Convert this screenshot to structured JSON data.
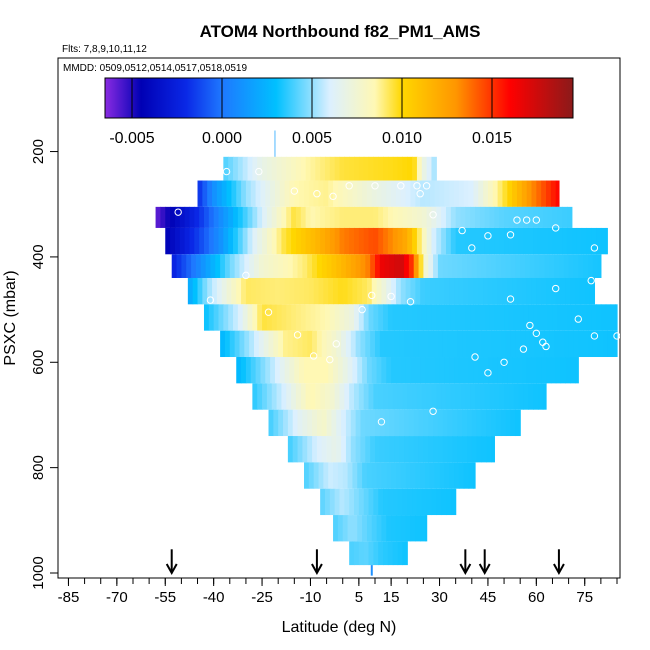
{
  "chart_data": {
    "type": "heatmap",
    "title": "ATOM4 Northbound f82_PM1_AMS",
    "flights_note": "Flts: 7,8,9,10,11,12",
    "dates_note": "MMDD: 0509,0512,0514,0517,0518,0519",
    "xlabel": "Latitude (deg N)",
    "ylabel": "PSXC (mbar)",
    "xlim": [
      -87,
      85
    ],
    "ylim": [
      1000,
      30
    ],
    "x_ticks": [
      -85,
      -70,
      -55,
      -40,
      -25,
      -10,
      5,
      15,
      30,
      45,
      60,
      75
    ],
    "y_ticks": [
      200,
      400,
      600,
      800,
      1000
    ],
    "colorbar": {
      "min": -0.0065,
      "max": 0.0195,
      "ticks": [
        -0.005,
        0.0,
        0.005,
        0.01,
        0.015
      ],
      "tick_labels": [
        "-0.005",
        "0.000",
        "0.005",
        "0.010",
        "0.015"
      ],
      "stops": [
        {
          "v": -0.0065,
          "c": "#8a2be2"
        },
        {
          "v": -0.0045,
          "c": "#0000b4"
        },
        {
          "v": -0.002,
          "c": "#0a28e6"
        },
        {
          "v": 0.0,
          "c": "#1e78ff"
        },
        {
          "v": 0.003,
          "c": "#00c0ff"
        },
        {
          "v": 0.006,
          "c": "#dcf0ff"
        },
        {
          "v": 0.0085,
          "c": "#fff8b4"
        },
        {
          "v": 0.01,
          "c": "#ffd700"
        },
        {
          "v": 0.013,
          "c": "#ff9600"
        },
        {
          "v": 0.016,
          "c": "#ff0000"
        },
        {
          "v": 0.0195,
          "c": "#8b1a1a"
        }
      ]
    },
    "layers": [
      {
        "p0": 210,
        "p1": 255,
        "lat0": -37,
        "lat1": 29,
        "pts": [
          [
            -37,
            0.004
          ],
          [
            -25,
            0.0068
          ],
          [
            -12,
            0.0085
          ],
          [
            0,
            0.0095
          ],
          [
            15,
            0.0098
          ],
          [
            22,
            0.01
          ],
          [
            25,
            0.007
          ],
          [
            29,
            0.005
          ]
        ]
      },
      {
        "p0": 255,
        "p1": 305,
        "lat0": -45,
        "lat1": 67,
        "pts": [
          [
            -45,
            -0.002
          ],
          [
            -40,
            0.001
          ],
          [
            -30,
            0.005
          ],
          [
            -15,
            0.0085
          ],
          [
            -5,
            0.0088
          ],
          [
            10,
            0.007
          ],
          [
            25,
            0.0055
          ],
          [
            40,
            0.006
          ],
          [
            50,
            0.0095
          ],
          [
            58,
            0.013
          ],
          [
            64,
            0.015
          ],
          [
            67,
            0.016
          ]
        ]
      },
      {
        "p0": 305,
        "p1": 345,
        "lat0": -58,
        "lat1": 71,
        "pts": [
          [
            -58,
            -0.006
          ],
          [
            -52,
            -0.004
          ],
          [
            -45,
            -0.002
          ],
          [
            -35,
            0.002
          ],
          [
            -25,
            0.006
          ],
          [
            -15,
            0.0095
          ],
          [
            -10,
            0.0085
          ],
          [
            0,
            0.009
          ],
          [
            10,
            0.009
          ],
          [
            25,
            0.0075
          ],
          [
            35,
            0.005
          ],
          [
            50,
            0.0042
          ],
          [
            71,
            0.0038
          ]
        ]
      },
      {
        "p0": 345,
        "p1": 395,
        "lat0": -55,
        "lat1": 82,
        "pts": [
          [
            -55,
            -0.0045
          ],
          [
            -45,
            -0.0015
          ],
          [
            -38,
            0.001
          ],
          [
            -28,
            0.006
          ],
          [
            -18,
            0.0095
          ],
          [
            -8,
            0.0115
          ],
          [
            0,
            0.0135
          ],
          [
            10,
            0.0145
          ],
          [
            20,
            0.012
          ],
          [
            28,
            0.006
          ],
          [
            35,
            0.0035
          ],
          [
            82,
            0.0032
          ]
        ]
      },
      {
        "p0": 395,
        "p1": 440,
        "lat0": -53,
        "lat1": 80,
        "pts": [
          [
            -53,
            -0.0025
          ],
          [
            -45,
            0.0005
          ],
          [
            -35,
            0.0045
          ],
          [
            -25,
            0.0075
          ],
          [
            -12,
            0.009
          ],
          [
            0,
            0.0115
          ],
          [
            8,
            0.0135
          ],
          [
            12,
            0.0165
          ],
          [
            18,
            0.0175
          ],
          [
            22,
            0.0145
          ],
          [
            25,
            0.008
          ],
          [
            30,
            0.0045
          ],
          [
            80,
            0.0033
          ]
        ]
      },
      {
        "p0": 440,
        "p1": 490,
        "lat0": -48,
        "lat1": 78,
        "pts": [
          [
            -48,
            0.0018
          ],
          [
            -42,
            0.005
          ],
          [
            -30,
            0.0092
          ],
          [
            -20,
            0.009
          ],
          [
            -10,
            0.0092
          ],
          [
            0,
            0.0098
          ],
          [
            8,
            0.0092
          ],
          [
            12,
            0.0075
          ],
          [
            18,
            0.005
          ],
          [
            25,
            0.0038
          ],
          [
            78,
            0.0032
          ]
        ]
      },
      {
        "p0": 490,
        "p1": 540,
        "lat0": -43,
        "lat1": 85,
        "pts": [
          [
            -43,
            0.003
          ],
          [
            -32,
            0.006
          ],
          [
            -25,
            0.0095
          ],
          [
            -15,
            0.009
          ],
          [
            -5,
            0.0085
          ],
          [
            3,
            0.007
          ],
          [
            8,
            0.0045
          ],
          [
            15,
            0.0035
          ],
          [
            85,
            0.0032
          ]
        ]
      },
      {
        "p0": 540,
        "p1": 590,
        "lat0": -38,
        "lat1": 85,
        "pts": [
          [
            -38,
            0.0025
          ],
          [
            -28,
            0.0055
          ],
          [
            -18,
            0.0088
          ],
          [
            -10,
            0.0092
          ],
          [
            -2,
            0.0075
          ],
          [
            5,
            0.005
          ],
          [
            12,
            0.0035
          ],
          [
            85,
            0.0032
          ]
        ]
      },
      {
        "p0": 590,
        "p1": 640,
        "lat0": -33,
        "lat1": 73,
        "pts": [
          [
            -33,
            0.0025
          ],
          [
            -22,
            0.0055
          ],
          [
            -12,
            0.0085
          ],
          [
            -5,
            0.0085
          ],
          [
            2,
            0.0065
          ],
          [
            8,
            0.0045
          ],
          [
            15,
            0.0035
          ],
          [
            73,
            0.0032
          ]
        ]
      },
      {
        "p0": 640,
        "p1": 690,
        "lat0": -28,
        "lat1": 63,
        "pts": [
          [
            -28,
            0.0035
          ],
          [
            -18,
            0.006
          ],
          [
            -10,
            0.0085
          ],
          [
            -3,
            0.0075
          ],
          [
            3,
            0.0055
          ],
          [
            10,
            0.004
          ],
          [
            63,
            0.0032
          ]
        ]
      },
      {
        "p0": 690,
        "p1": 740,
        "lat0": -23,
        "lat1": 55,
        "pts": [
          [
            -23,
            0.0038
          ],
          [
            -13,
            0.0065
          ],
          [
            -6,
            0.0078
          ],
          [
            0,
            0.006
          ],
          [
            6,
            0.0045
          ],
          [
            55,
            0.0032
          ]
        ]
      },
      {
        "p0": 740,
        "p1": 790,
        "lat0": -17,
        "lat1": 47,
        "pts": [
          [
            -17,
            0.0038
          ],
          [
            -8,
            0.006
          ],
          [
            -2,
            0.0068
          ],
          [
            3,
            0.005
          ],
          [
            10,
            0.0038
          ],
          [
            47,
            0.0032
          ]
        ]
      },
      {
        "p0": 790,
        "p1": 840,
        "lat0": -12,
        "lat1": 41,
        "pts": [
          [
            -12,
            0.004
          ],
          [
            -4,
            0.0058
          ],
          [
            1,
            0.0055
          ],
          [
            7,
            0.004
          ],
          [
            41,
            0.0032
          ]
        ]
      },
      {
        "p0": 840,
        "p1": 890,
        "lat0": -7,
        "lat1": 35,
        "pts": [
          [
            -7,
            0.0042
          ],
          [
            0,
            0.0055
          ],
          [
            6,
            0.0045
          ],
          [
            12,
            0.0035
          ],
          [
            35,
            0.0032
          ]
        ]
      },
      {
        "p0": 890,
        "p1": 940,
        "lat0": -3,
        "lat1": 26,
        "pts": [
          [
            -3,
            0.004
          ],
          [
            3,
            0.005
          ],
          [
            8,
            0.0042
          ],
          [
            14,
            0.0034
          ],
          [
            26,
            0.0032
          ]
        ]
      },
      {
        "p0": 940,
        "p1": 985,
        "lat0": 2,
        "lat1": 20,
        "pts": [
          [
            2,
            0.004
          ],
          [
            7,
            0.0043
          ],
          [
            12,
            0.0036
          ],
          [
            20,
            0.0032
          ]
        ]
      }
    ],
    "sample_points": [
      [
        -51,
        315
      ],
      [
        -36,
        238
      ],
      [
        -26,
        238
      ],
      [
        -15,
        275
      ],
      [
        -8,
        280
      ],
      [
        -3,
        285
      ],
      [
        2,
        265
      ],
      [
        10,
        265
      ],
      [
        18,
        265
      ],
      [
        23,
        265
      ],
      [
        26,
        265
      ],
      [
        24,
        280
      ],
      [
        28,
        320
      ],
      [
        37,
        350
      ],
      [
        40,
        383
      ],
      [
        45,
        360
      ],
      [
        52,
        358
      ],
      [
        54,
        330
      ],
      [
        57,
        330
      ],
      [
        60,
        330
      ],
      [
        66,
        345
      ],
      [
        78,
        383
      ],
      [
        -41,
        482
      ],
      [
        -30,
        435
      ],
      [
        -23,
        505
      ],
      [
        -14,
        548
      ],
      [
        -9,
        588
      ],
      [
        -4,
        595
      ],
      [
        -2,
        565
      ],
      [
        6,
        500
      ],
      [
        9,
        473
      ],
      [
        15,
        475
      ],
      [
        21,
        485
      ],
      [
        52,
        480
      ],
      [
        58,
        530
      ],
      [
        60,
        545
      ],
      [
        62,
        562
      ],
      [
        63,
        570
      ],
      [
        66,
        460
      ],
      [
        73,
        518
      ],
      [
        77,
        445
      ],
      [
        78,
        550
      ],
      [
        85,
        550
      ],
      [
        41,
        590
      ],
      [
        45,
        620
      ],
      [
        50,
        600
      ],
      [
        56,
        575
      ],
      [
        28,
        693
      ],
      [
        12,
        713
      ]
    ],
    "arrow_latitudes": [
      -53,
      -8,
      38,
      44,
      67
    ],
    "ticks_near_x_axis": [
      9
    ]
  }
}
